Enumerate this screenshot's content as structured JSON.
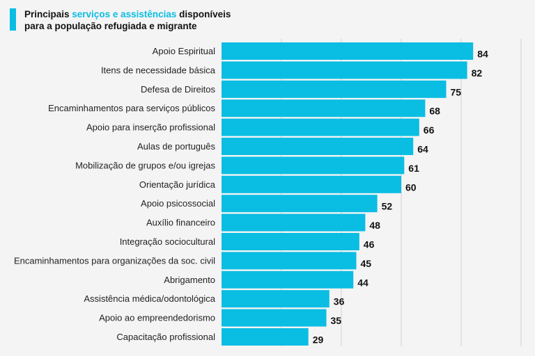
{
  "title": {
    "part1": "Principais ",
    "highlight": "serviços e assistências",
    "part2": " disponíveis",
    "line2": "para a população refugiada e migrante"
  },
  "colors": {
    "bar": "#0abde3",
    "accent": "#0abde3",
    "grid": "#d0d0d0",
    "background": "#f4f4f4"
  },
  "chart_data": {
    "type": "bar",
    "orientation": "horizontal",
    "grid": true,
    "xlim": [
      0,
      100
    ],
    "categories": [
      "Apoio Espiritual",
      "Itens de necessidade básica",
      "Defesa de Direitos",
      "Encaminhamentos para serviços públicos",
      "Apoio para inserção profissional",
      "Aulas de português",
      "Mobilização de grupos e/ou igrejas",
      "Orientação jurídica",
      "Apoio psicossocial",
      "Auxílio financeiro",
      "Integração sociocultural",
      "Encaminhamentos para organizações da soc. civil",
      "Abrigamento",
      "Assistência médica/odontológica",
      "Apoio ao empreendedorismo",
      "Capacitação profissional"
    ],
    "values": [
      84,
      82,
      75,
      68,
      66,
      64,
      61,
      60,
      52,
      48,
      46,
      45,
      44,
      36,
      35,
      29
    ]
  }
}
